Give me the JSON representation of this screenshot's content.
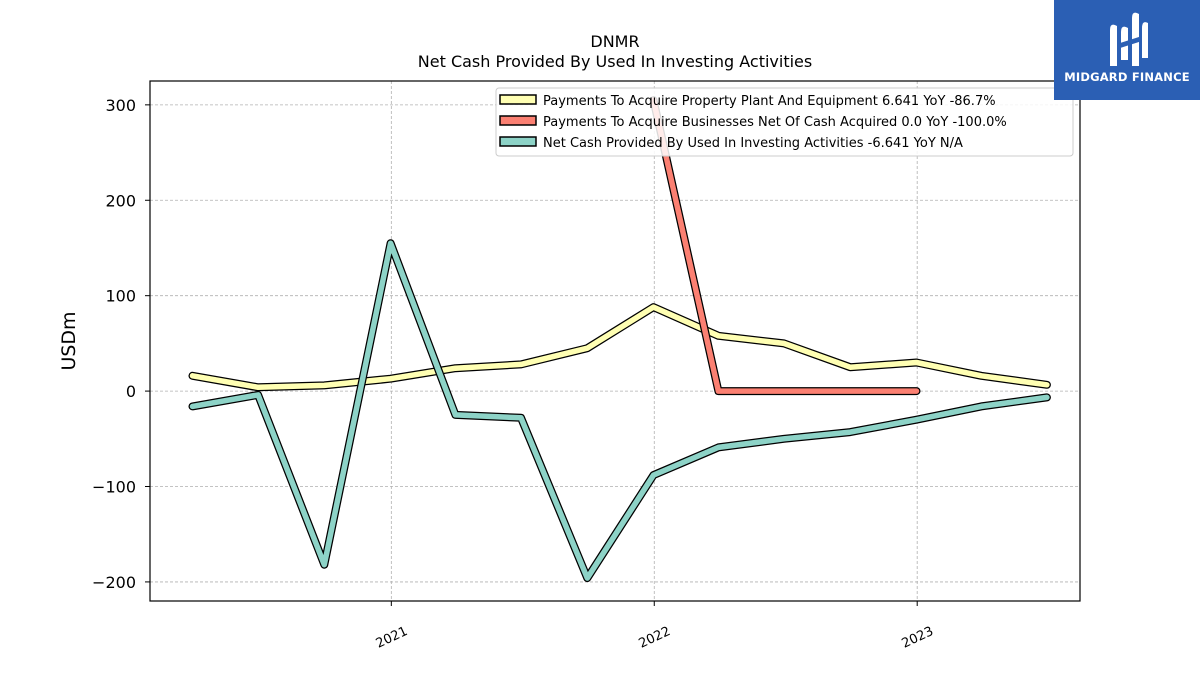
{
  "chart_data": {
    "type": "line",
    "title": "DNMR",
    "subtitle": "Net Cash Provided By Used In Investing Activities",
    "ylabel": "USDm",
    "xlabel": "",
    "ylim": [
      -220,
      325
    ],
    "xlim": [
      "2020-02-01",
      "2023-08-15"
    ],
    "yticks": [
      -200,
      -100,
      0,
      100,
      200,
      300
    ],
    "ytick_labels": [
      "−200",
      "−100",
      "0",
      "100",
      "200",
      "300"
    ],
    "xticks": [
      "2021-01-01",
      "2022-01-01",
      "2023-01-01"
    ],
    "xtick_labels": [
      "2021",
      "2022",
      "2023"
    ],
    "grid": true,
    "legend_position": "top-right",
    "series": [
      {
        "name": "Payments To Acquire Property Plant And Equipment",
        "legend_label": "Payments To Acquire Property Plant And Equipment  6.641 YoY -86.7%",
        "color": "#ffffb3",
        "x": [
          "2020-03-31",
          "2020-06-30",
          "2020-09-30",
          "2020-12-31",
          "2021-03-31",
          "2021-06-30",
          "2021-09-30",
          "2021-12-31",
          "2022-03-31",
          "2022-06-30",
          "2022-09-30",
          "2022-12-31",
          "2023-03-31",
          "2023-06-30"
        ],
        "y": [
          16,
          4,
          6,
          13,
          24,
          28,
          45,
          88,
          58,
          50,
          25,
          30,
          16,
          6.641
        ]
      },
      {
        "name": "Payments To Acquire Businesses Net Of Cash Acquired",
        "legend_label": "Payments To Acquire Businesses Net Of Cash Acquired  0.0 YoY -100.0%",
        "color": "#fb8072",
        "x": [
          "2021-12-31",
          "2022-03-31",
          "2022-06-30",
          "2022-09-30",
          "2022-12-31"
        ],
        "y": [
          305,
          0,
          0,
          0,
          0
        ]
      },
      {
        "name": "Net Cash Provided By Used In Investing Activities",
        "legend_label": "Net Cash Provided By Used In Investing Activities  -6.641 YoY N/A",
        "color": "#8dd3c7",
        "x": [
          "2020-03-31",
          "2020-06-30",
          "2020-09-30",
          "2020-12-31",
          "2021-03-31",
          "2021-06-30",
          "2021-09-30",
          "2021-12-31",
          "2022-03-31",
          "2022-06-30",
          "2022-09-30",
          "2022-12-31",
          "2023-03-31",
          "2023-06-30"
        ],
        "y": [
          -16,
          -4,
          -182,
          155,
          -25,
          -28,
          -196,
          -88,
          -59,
          -50,
          -43,
          -30,
          -16,
          -6.641
        ]
      }
    ]
  },
  "logo": {
    "text": "MIDGARD FINANCE",
    "icon": "midgard-m-logo-icon",
    "color": "#2b5fb4"
  }
}
